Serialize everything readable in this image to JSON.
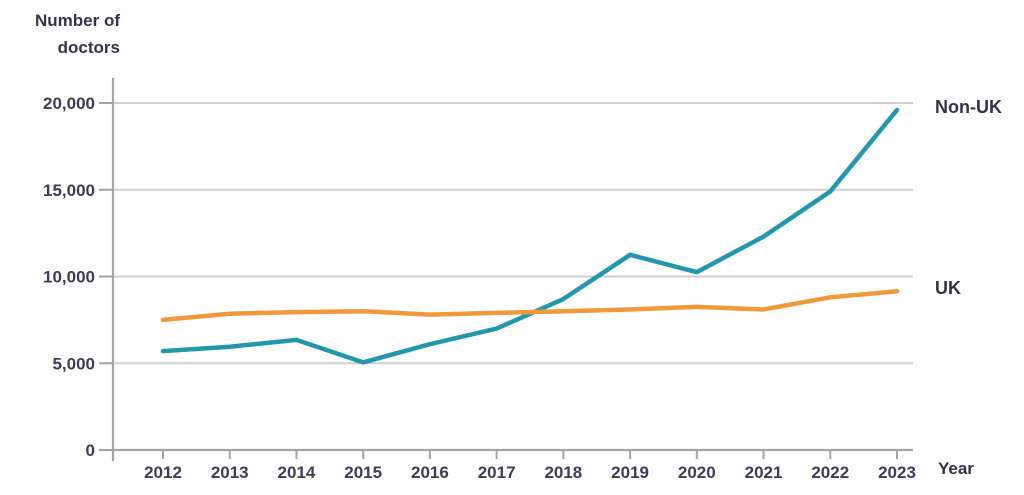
{
  "chart_data": {
    "type": "line",
    "title": "Number of doctors",
    "xlabel": "Year",
    "ylabel": "Number of doctors",
    "categories": [
      "2012",
      "2013",
      "2014",
      "2015",
      "2016",
      "2017",
      "2018",
      "2019",
      "2020",
      "2021",
      "2022",
      "2023"
    ],
    "series": [
      {
        "name": "Non-UK",
        "color": "#2397ac",
        "values": [
          5700,
          5950,
          6350,
          5050,
          6100,
          7000,
          8700,
          11250,
          10250,
          12300,
          14900,
          19600
        ]
      },
      {
        "name": "UK",
        "color": "#f0993a",
        "values": [
          7500,
          7850,
          7950,
          8000,
          7800,
          7900,
          8000,
          8100,
          8250,
          8100,
          8800,
          9150
        ]
      }
    ],
    "ylim": [
      0,
      20000
    ],
    "yticks": [
      0,
      5000,
      10000,
      15000,
      20000
    ],
    "ytick_labels": [
      "0",
      "5,000",
      "10,000",
      "15,000",
      "20,000"
    ],
    "grid": true,
    "legend_position": "right of line ends"
  },
  "colors": {
    "text": "#31344b",
    "tick_text": "#3a3e57",
    "gridline": "#cfcfd3",
    "axis": "#a2a3ab",
    "non_uk_line": "#2397ac",
    "uk_line": "#f0993a",
    "background": "#ffffff"
  }
}
